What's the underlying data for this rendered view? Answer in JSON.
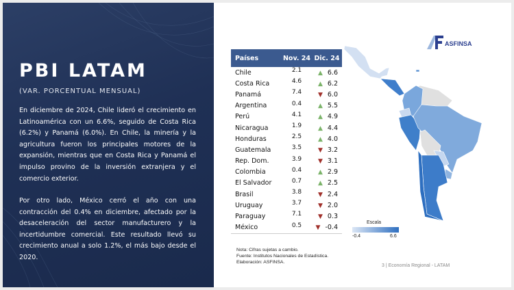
{
  "left": {
    "title": "PBI LATAM",
    "subtitle": "(VAR. PORCENTUAL MENSUAL)",
    "paragraph1": "En diciembre de 2024, Chile lideró el crecimiento en Latinoamérica con un 6.6%, seguido de Costa Rica (6.2%) y Panamá (6.0%). En Chile, la minería y la agricultura fueron los principales motores de la expansión, mientras que en Costa Rica y Panamá el impulso provino de la inversión extranjera y el comercio exterior.",
    "paragraph2": "Por otro lado, México cerró el año con una contracción del 0.4% en diciembre, afectado por la desaceleración del sector manufacturero y la incertidumbre comercial. Este resultado llevó su crecimiento anual a solo 1.2%, el más bajo desde el 2020."
  },
  "table": {
    "headers": [
      "Países",
      "Nov. 24",
      "Dic. 24"
    ],
    "rows": [
      {
        "country": "Chile",
        "nov": "2.1",
        "dic": "6.6",
        "trend": "up"
      },
      {
        "country": "Costa Rica",
        "nov": "4.6",
        "dic": "6.2",
        "trend": "up"
      },
      {
        "country": "Panamá",
        "nov": "7.4",
        "dic": "6.0",
        "trend": "down"
      },
      {
        "country": "Argentina",
        "nov": "0.4",
        "dic": "5.5",
        "trend": "up"
      },
      {
        "country": "Perú",
        "nov": "4.1",
        "dic": "4.9",
        "trend": "up"
      },
      {
        "country": "Nicaragua",
        "nov": "1.9",
        "dic": "4.4",
        "trend": "up"
      },
      {
        "country": "Honduras",
        "nov": "2.5",
        "dic": "4.0",
        "trend": "up"
      },
      {
        "country": "Guatemala",
        "nov": "3.5",
        "dic": "3.2",
        "trend": "down"
      },
      {
        "country": "Rep. Dom.",
        "nov": "3.9",
        "dic": "3.1",
        "trend": "down"
      },
      {
        "country": "Colombia",
        "nov": "0.4",
        "dic": "2.9",
        "trend": "up"
      },
      {
        "country": "El Salvador",
        "nov": "0.7",
        "dic": "2.5",
        "trend": "up"
      },
      {
        "country": "Brasil",
        "nov": "3.8",
        "dic": "2.4",
        "trend": "down"
      },
      {
        "country": "Uruguay",
        "nov": "3.7",
        "dic": "2.0",
        "trend": "down"
      },
      {
        "country": "Paraguay",
        "nov": "7.1",
        "dic": "0.3",
        "trend": "down"
      },
      {
        "country": "México",
        "nov": "0.5",
        "dic": "-0.4",
        "trend": "down"
      }
    ]
  },
  "notes": {
    "line1": "Nota: Cifras sujetas a cambio.",
    "line2": "Fuente: Institutos Nacionales de Estadística.",
    "line3": "Elaboración: ASFINSA."
  },
  "legend": {
    "title": "Escala",
    "min": "-0.4",
    "max": "6.6"
  },
  "logo": {
    "name": "ASFINSA"
  },
  "footer": "3 | Economía Regional - LATAM",
  "colors": {
    "navy": "#1f3055",
    "header": "#3b5a8f",
    "up": "#7bb369",
    "down": "#a0302a",
    "scale_low": "#dbe6f5",
    "scale_high": "#2f6fc0"
  }
}
